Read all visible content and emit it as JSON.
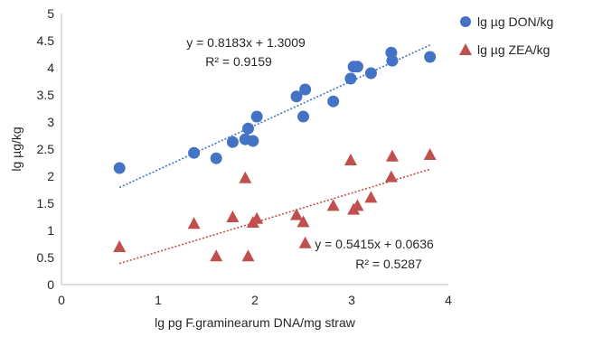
{
  "chart_data": {
    "type": "scatter",
    "xlabel": "lg pg  F.graminearum DNA/mg straw",
    "ylabel": "lg µg/kg",
    "xlim": [
      0,
      4
    ],
    "ylim": [
      0,
      5
    ],
    "xticks": [
      0,
      1,
      2,
      3,
      4
    ],
    "yticks": [
      0,
      0.5,
      1,
      1.5,
      2,
      2.5,
      3,
      3.5,
      4,
      4.5,
      5
    ],
    "grid": false,
    "legend_position": "top-right",
    "series": [
      {
        "name": "lg µg DON/kg",
        "color": "#4472C4",
        "marker": "circle",
        "points": [
          {
            "x": 0.6,
            "y": 2.15
          },
          {
            "x": 1.37,
            "y": 2.43
          },
          {
            "x": 1.6,
            "y": 2.33
          },
          {
            "x": 1.77,
            "y": 2.63
          },
          {
            "x": 1.9,
            "y": 2.68
          },
          {
            "x": 1.93,
            "y": 2.88
          },
          {
            "x": 1.98,
            "y": 2.65
          },
          {
            "x": 2.02,
            "y": 3.1
          },
          {
            "x": 2.43,
            "y": 3.47
          },
          {
            "x": 2.5,
            "y": 3.1
          },
          {
            "x": 2.52,
            "y": 3.6
          },
          {
            "x": 2.81,
            "y": 3.38
          },
          {
            "x": 2.99,
            "y": 3.8
          },
          {
            "x": 3.02,
            "y": 4.02
          },
          {
            "x": 3.06,
            "y": 4.02
          },
          {
            "x": 3.2,
            "y": 3.9
          },
          {
            "x": 3.41,
            "y": 4.28
          },
          {
            "x": 3.42,
            "y": 4.13
          },
          {
            "x": 3.81,
            "y": 4.2
          }
        ],
        "trendline": {
          "slope": 0.8183,
          "intercept": 1.3009,
          "x_range": [
            0.6,
            3.81
          ],
          "color": "#4472C4"
        },
        "equation": "y = 0.8183x + 1.3009",
        "r_squared": "R² = 0.9159"
      },
      {
        "name": "lg µg ZEA/kg",
        "color": "#C0504D",
        "marker": "triangle",
        "points": [
          {
            "x": 0.6,
            "y": 0.7
          },
          {
            "x": 1.37,
            "y": 1.13
          },
          {
            "x": 1.6,
            "y": 0.53
          },
          {
            "x": 1.77,
            "y": 1.25
          },
          {
            "x": 1.9,
            "y": 1.97
          },
          {
            "x": 1.93,
            "y": 0.53
          },
          {
            "x": 1.98,
            "y": 1.15
          },
          {
            "x": 2.02,
            "y": 1.22
          },
          {
            "x": 2.43,
            "y": 1.29
          },
          {
            "x": 2.5,
            "y": 1.16
          },
          {
            "x": 2.52,
            "y": 0.77
          },
          {
            "x": 2.81,
            "y": 1.46
          },
          {
            "x": 2.99,
            "y": 2.3
          },
          {
            "x": 3.02,
            "y": 1.39
          },
          {
            "x": 3.06,
            "y": 1.46
          },
          {
            "x": 3.2,
            "y": 1.61
          },
          {
            "x": 3.41,
            "y": 1.99
          },
          {
            "x": 3.42,
            "y": 2.37
          },
          {
            "x": 3.81,
            "y": 2.4
          }
        ],
        "trendline": {
          "slope": 0.5415,
          "intercept": 0.0636,
          "x_range": [
            0.6,
            3.81
          ],
          "color": "#C0504D"
        },
        "equation": "y = 0.5415x + 0.0636",
        "r_squared": "R² = 0.5287"
      }
    ]
  }
}
